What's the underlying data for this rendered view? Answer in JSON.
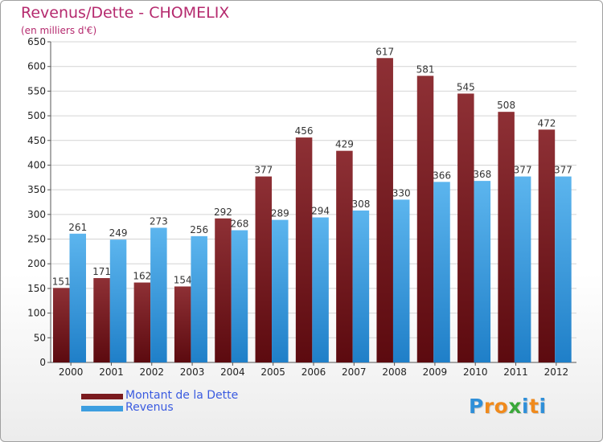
{
  "chart_data": {
    "type": "bar",
    "title": "Revenus/Dette - CHOMELIX",
    "subtitle": "(en milliers d'€)",
    "categories": [
      "2000",
      "2001",
      "2002",
      "2003",
      "2004",
      "2005",
      "2006",
      "2007",
      "2008",
      "2009",
      "2010",
      "2011",
      "2012"
    ],
    "series": [
      {
        "name": "Montant de la Dette",
        "color": "#7a1a1e",
        "values": [
          151,
          171,
          162,
          154,
          292,
          377,
          456,
          429,
          617,
          581,
          545,
          508,
          472
        ]
      },
      {
        "name": "Revenus",
        "color": "#3d9ee0",
        "values": [
          261,
          249,
          273,
          256,
          268,
          289,
          294,
          308,
          330,
          366,
          368,
          377,
          377
        ]
      }
    ],
    "ylim": [
      0,
      650
    ],
    "yticks": [
      0,
      50,
      100,
      150,
      200,
      250,
      300,
      350,
      400,
      450,
      500,
      550,
      600,
      650
    ],
    "grid": true,
    "legend": "bottom-left"
  },
  "logo": {
    "letters": [
      "P",
      "r",
      "o",
      "x",
      "i",
      "t",
      "i"
    ],
    "colors": [
      "#2f8fd8",
      "#f08a1c",
      "#f08a1c",
      "#3aa83a",
      "#2f8fd8",
      "#f08a1c",
      "#2f8fd8"
    ]
  }
}
